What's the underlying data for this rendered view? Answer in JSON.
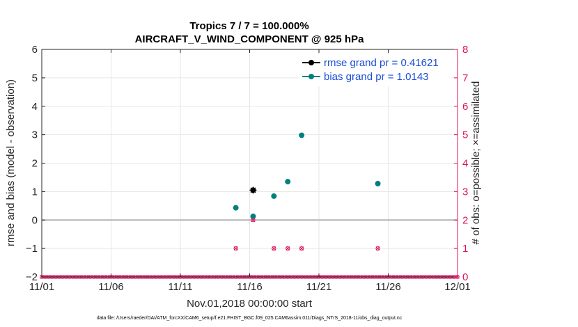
{
  "chart_data": {
    "type": "scatter",
    "title_line1": "Tropics 7 / 7 = 100.000%",
    "title_line2": "AIRCRAFT_V_WIND_COMPONENT @ 925 hPa",
    "xlabel": "Nov.01,2018 00:00:00 start",
    "ylabel": "rmse and bias (model - observation)",
    "ylabel_right": "# of obs: o=possible; ×=assimilated",
    "footnote": "data file: /Users/raeder/DAI/ATM_forcXX/CAM6_setup/f.e21.FHIST_BGC.f09_025.CAM6assim.011/Diags_NTrS_2018-11/obs_diag_output.nc",
    "xlim": [
      0,
      30
    ],
    "ylim": [
      -2,
      6
    ],
    "ylim_right": [
      0,
      8
    ],
    "xticks": [
      0,
      5,
      10,
      15,
      20,
      25,
      30
    ],
    "xtick_labels": [
      "11/01",
      "11/06",
      "11/11",
      "11/16",
      "11/21",
      "11/26",
      "12/01"
    ],
    "yticks": [
      -2,
      -1,
      0,
      1,
      2,
      3,
      4,
      5,
      6
    ],
    "ytick_labels": [
      "−2",
      "−1",
      "0",
      "1",
      "2",
      "3",
      "4",
      "5",
      "6"
    ],
    "yticks_right": [
      0,
      1,
      2,
      3,
      4,
      5,
      6,
      7,
      8
    ],
    "ytick_labels_right": [
      "0",
      "1",
      "2",
      "3",
      "4",
      "5",
      "6",
      "7",
      "8"
    ],
    "grid": true,
    "legend_position": "top-right",
    "series": [
      {
        "name": "rmse grand pr = 0.41621",
        "color": "#000000",
        "axis": "left",
        "marker": "star",
        "points": [
          {
            "x": 15.25,
            "y": 1.05
          }
        ]
      },
      {
        "name": "bias grand pr = 1.0143",
        "color": "#008080",
        "axis": "left",
        "marker": "dot",
        "points": [
          {
            "x": 14.0,
            "y": 0.43
          },
          {
            "x": 15.25,
            "y": 0.13
          },
          {
            "x": 16.75,
            "y": 0.84
          },
          {
            "x": 17.75,
            "y": 1.35
          },
          {
            "x": 18.75,
            "y": 2.98
          },
          {
            "x": 24.25,
            "y": 1.28
          }
        ]
      },
      {
        "name": "obs possible",
        "color": "#e0115f",
        "axis": "right",
        "marker": "circle",
        "points": [
          {
            "x": 14.0,
            "y": 1
          },
          {
            "x": 15.25,
            "y": 2
          },
          {
            "x": 16.75,
            "y": 1
          },
          {
            "x": 17.75,
            "y": 1
          },
          {
            "x": 18.75,
            "y": 1
          },
          {
            "x": 24.25,
            "y": 1
          }
        ]
      },
      {
        "name": "obs assimilated",
        "color": "#e0115f",
        "axis": "right",
        "marker": "x",
        "points": [
          {
            "x": 14.0,
            "y": 1
          },
          {
            "x": 15.25,
            "y": 2
          },
          {
            "x": 16.75,
            "y": 1
          },
          {
            "x": 17.75,
            "y": 1
          },
          {
            "x": 18.75,
            "y": 1
          },
          {
            "x": 24.25,
            "y": 1
          }
        ]
      }
    ],
    "zero_line_color": "#b3b3b3",
    "right_axis_color": "#e0115f",
    "baseline_bins_per_day": 4
  }
}
